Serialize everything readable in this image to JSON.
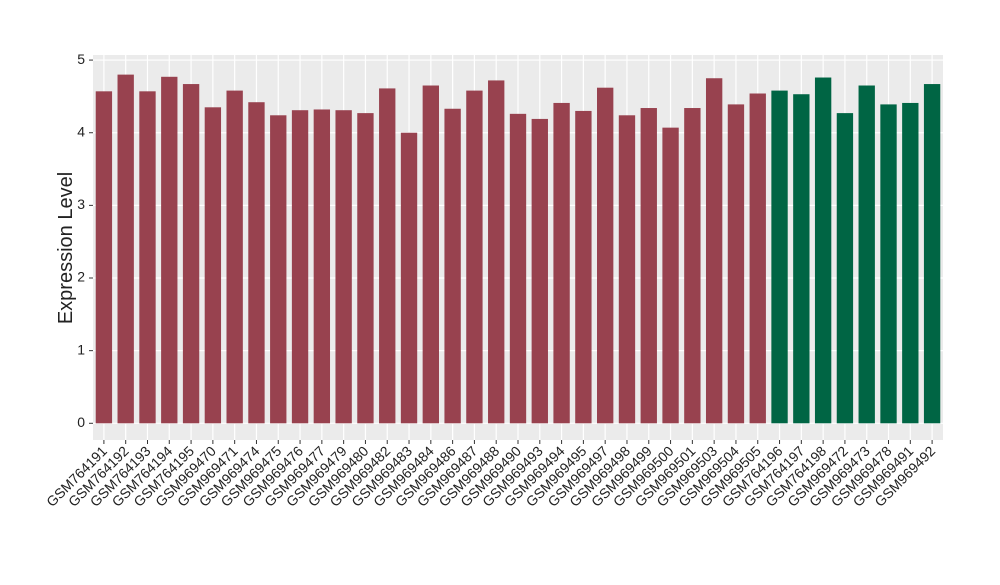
{
  "chart_data": {
    "type": "bar",
    "y_label": "Expression Level",
    "categories": [
      "GSM764191",
      "GSM764192",
      "GSM764193",
      "GSM764194",
      "GSM764195",
      "GSM969470",
      "GSM969471",
      "GSM969474",
      "GSM969475",
      "GSM969476",
      "GSM969477",
      "GSM969479",
      "GSM969480",
      "GSM969482",
      "GSM969483",
      "GSM969484",
      "GSM969486",
      "GSM969487",
      "GSM969488",
      "GSM969490",
      "GSM969493",
      "GSM969494",
      "GSM969495",
      "GSM969497",
      "GSM969498",
      "GSM969499",
      "GSM969500",
      "GSM969501",
      "GSM969503",
      "GSM969504",
      "GSM969505",
      "GSM764196",
      "GSM764197",
      "GSM764198",
      "GSM969472",
      "GSM969473",
      "GSM969478",
      "GSM969491",
      "GSM969492"
    ],
    "values": [
      4.57,
      4.8,
      4.57,
      4.77,
      4.67,
      4.35,
      4.58,
      4.42,
      4.24,
      4.31,
      4.32,
      4.31,
      4.27,
      4.61,
      4.0,
      4.65,
      4.33,
      4.58,
      4.72,
      4.26,
      4.19,
      4.41,
      4.3,
      4.62,
      4.24,
      4.34,
      4.07,
      4.34,
      4.75,
      4.39,
      4.54,
      4.58,
      4.53,
      4.76,
      4.27,
      4.65,
      4.39,
      4.41,
      4.67
    ],
    "colors": [
      "#98424f",
      "#98424f",
      "#98424f",
      "#98424f",
      "#98424f",
      "#98424f",
      "#98424f",
      "#98424f",
      "#98424f",
      "#98424f",
      "#98424f",
      "#98424f",
      "#98424f",
      "#98424f",
      "#98424f",
      "#98424f",
      "#98424f",
      "#98424f",
      "#98424f",
      "#98424f",
      "#98424f",
      "#98424f",
      "#98424f",
      "#98424f",
      "#98424f",
      "#98424f",
      "#98424f",
      "#98424f",
      "#98424f",
      "#98424f",
      "#98424f",
      "#006544",
      "#006544",
      "#006544",
      "#006544",
      "#006544",
      "#006544",
      "#006544",
      "#006544"
    ],
    "ylim": [
      -0.23,
      5.07
    ],
    "yticks": [
      0,
      1,
      2,
      3,
      4,
      5
    ],
    "grid": true
  }
}
